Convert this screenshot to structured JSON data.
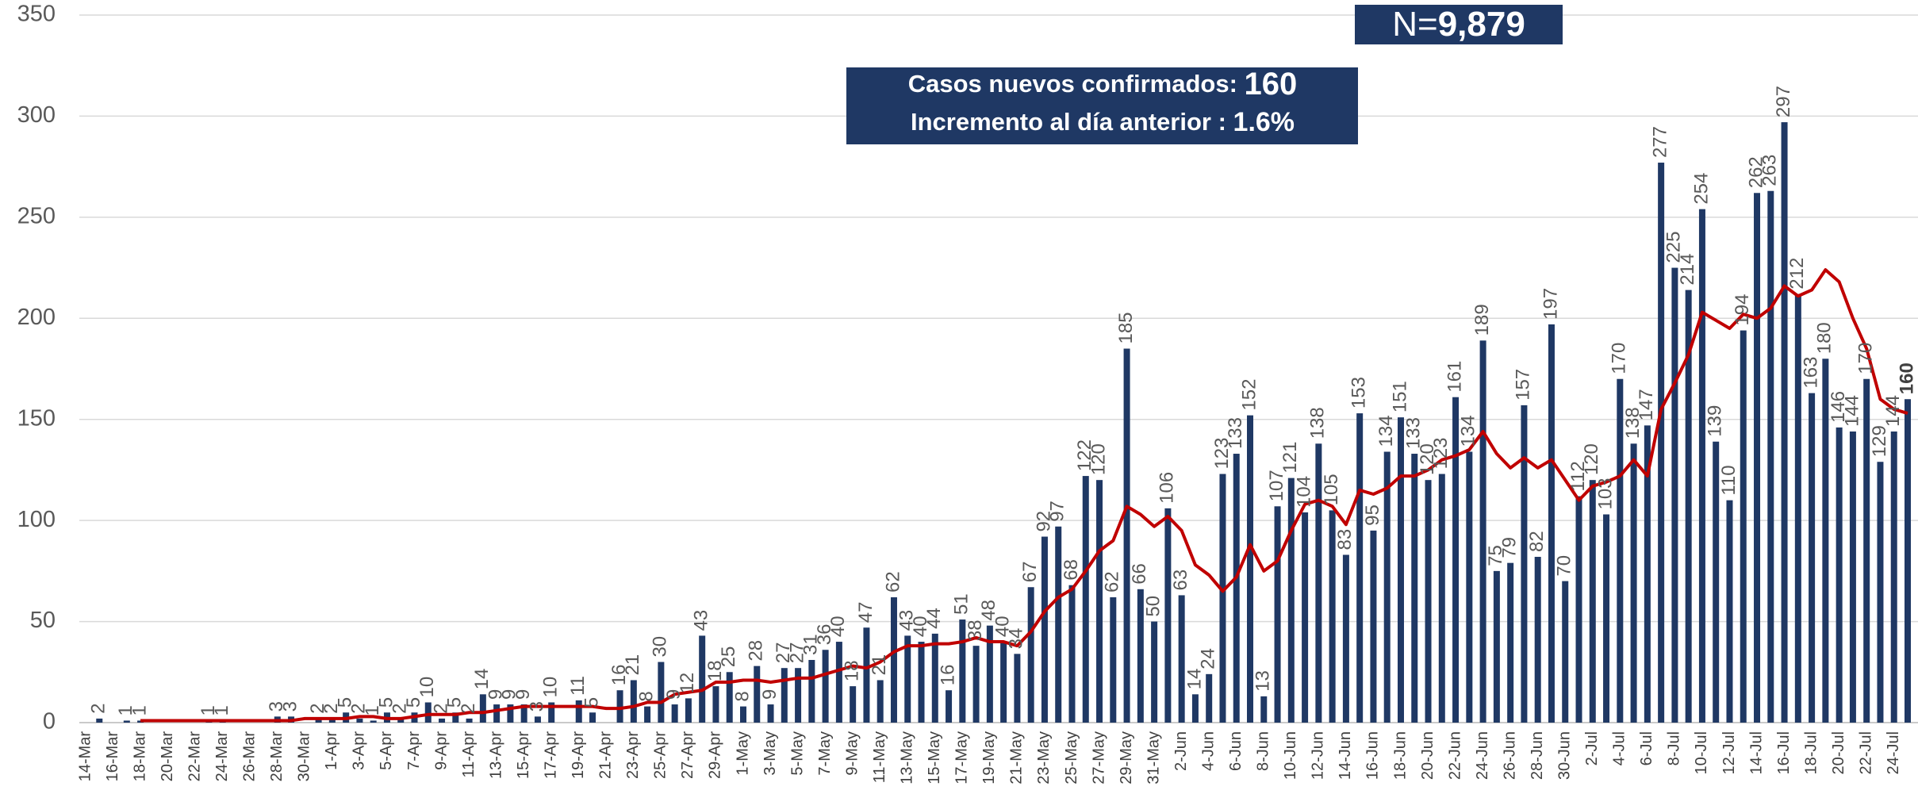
{
  "chart_data": {
    "type": "bar",
    "categories": [
      "14-Mar",
      null,
      "16-Mar",
      null,
      "18-Mar",
      null,
      "20-Mar",
      null,
      "22-Mar",
      null,
      "24-Mar",
      null,
      "26-Mar",
      null,
      "28-Mar",
      null,
      "30-Mar",
      null,
      "1-Apr",
      null,
      "3-Apr",
      null,
      "5-Apr",
      null,
      "7-Apr",
      null,
      "9-Apr",
      null,
      "11-Apr",
      null,
      "13-Apr",
      null,
      "15-Apr",
      null,
      "17-Apr",
      null,
      "19-Apr",
      null,
      "21-Apr",
      null,
      "23-Apr",
      null,
      "25-Apr",
      null,
      "27-Apr",
      null,
      "29-Apr",
      null,
      "1-May",
      null,
      "3-May",
      null,
      "5-May",
      null,
      "7-May",
      null,
      "9-May",
      null,
      "11-May",
      null,
      "13-May",
      null,
      "15-May",
      null,
      "17-May",
      null,
      "19-May",
      null,
      "21-May",
      null,
      "23-May",
      null,
      "25-May",
      null,
      "27-May",
      null,
      "29-May",
      null,
      "31-May",
      null,
      "2-Jun",
      null,
      "4-Jun",
      null,
      "6-Jun",
      null,
      "8-Jun",
      null,
      "10-Jun",
      null,
      "12-Jun",
      null,
      "14-Jun",
      null,
      "16-Jun",
      null,
      "18-Jun",
      null,
      "20-Jun",
      null,
      "22-Jun",
      null,
      "24-Jun",
      null,
      "26-Jun",
      null,
      "28-Jun",
      null,
      "30-Jun",
      null,
      "2-Jul",
      null,
      "4-Jul",
      null,
      "6-Jul",
      null,
      "8-Jul",
      null,
      "10-Jul",
      null,
      "12-Jul",
      null,
      "14-Jul",
      null,
      "16-Jul",
      null,
      "18-Jul",
      null,
      "20-Jul",
      null,
      "22-Jul",
      null,
      "24-Jul",
      null
    ],
    "values": [
      0,
      2,
      0,
      1,
      1,
      0,
      0,
      0,
      0,
      1,
      1,
      0,
      0,
      0,
      3,
      3,
      0,
      2,
      2,
      5,
      2,
      1,
      5,
      2,
      5,
      10,
      2,
      5,
      2,
      14,
      9,
      9,
      9,
      3,
      10,
      0,
      11,
      5,
      0,
      16,
      21,
      8,
      30,
      9,
      12,
      43,
      18,
      25,
      8,
      28,
      9,
      27,
      27,
      31,
      36,
      40,
      18,
      47,
      21,
      62,
      43,
      40,
      44,
      16,
      51,
      38,
      48,
      40,
      34,
      67,
      92,
      97,
      68,
      122,
      120,
      62,
      185,
      66,
      50,
      106,
      63,
      14,
      24,
      123,
      133,
      152,
      13,
      107,
      121,
      104,
      138,
      105,
      83,
      153,
      95,
      134,
      151,
      133,
      120,
      123,
      161,
      134,
      189,
      75,
      79,
      157,
      82,
      197,
      70,
      112,
      120,
      103,
      170,
      138,
      147,
      277,
      225,
      214,
      254,
      139,
      110,
      194,
      262,
      263,
      297,
      212,
      163,
      180,
      146,
      144,
      170,
      129,
      144,
      160
    ],
    "color": "#1f3864",
    "line": {
      "type": "line",
      "color": "#c00000",
      "values": [
        null,
        null,
        null,
        null,
        1,
        1,
        1,
        1,
        1,
        1,
        1,
        1,
        1,
        1,
        1,
        1,
        2,
        2,
        2,
        2,
        3,
        3,
        2,
        2,
        3,
        4,
        4,
        4,
        5,
        5,
        6,
        7,
        8,
        8,
        8,
        8,
        8,
        8,
        7,
        7,
        8,
        10,
        10,
        14,
        15,
        16,
        20,
        20,
        21,
        21,
        20,
        21,
        22,
        22,
        24,
        26,
        28,
        27,
        30,
        35,
        38,
        38,
        39,
        39,
        40,
        42,
        40,
        40,
        38,
        45,
        55,
        62,
        66,
        75,
        85,
        90,
        107,
        103,
        97,
        102,
        95,
        78,
        73,
        65,
        72,
        88,
        75,
        80,
        95,
        108,
        110,
        107,
        98,
        115,
        113,
        116,
        122,
        122,
        125,
        130,
        132,
        135,
        144,
        133,
        126,
        131,
        126,
        130,
        120,
        110,
        117,
        119,
        122,
        130,
        122,
        155,
        168,
        182,
        203,
        199,
        195,
        202,
        200,
        205,
        216,
        211,
        214,
        224,
        218,
        200,
        185,
        160,
        155,
        153
      ]
    },
    "ylim": [
      0,
      350
    ],
    "yticks": [
      0,
      50,
      100,
      150,
      200,
      250,
      300,
      350
    ],
    "grid": true,
    "annotations": {
      "total_prefix": "N=",
      "total": "9,879",
      "new_cases_label": "Casos nuevos confirmados:",
      "new_cases": "160",
      "increase_label": "Incremento al día anterior :",
      "increase": "1.6%"
    }
  }
}
